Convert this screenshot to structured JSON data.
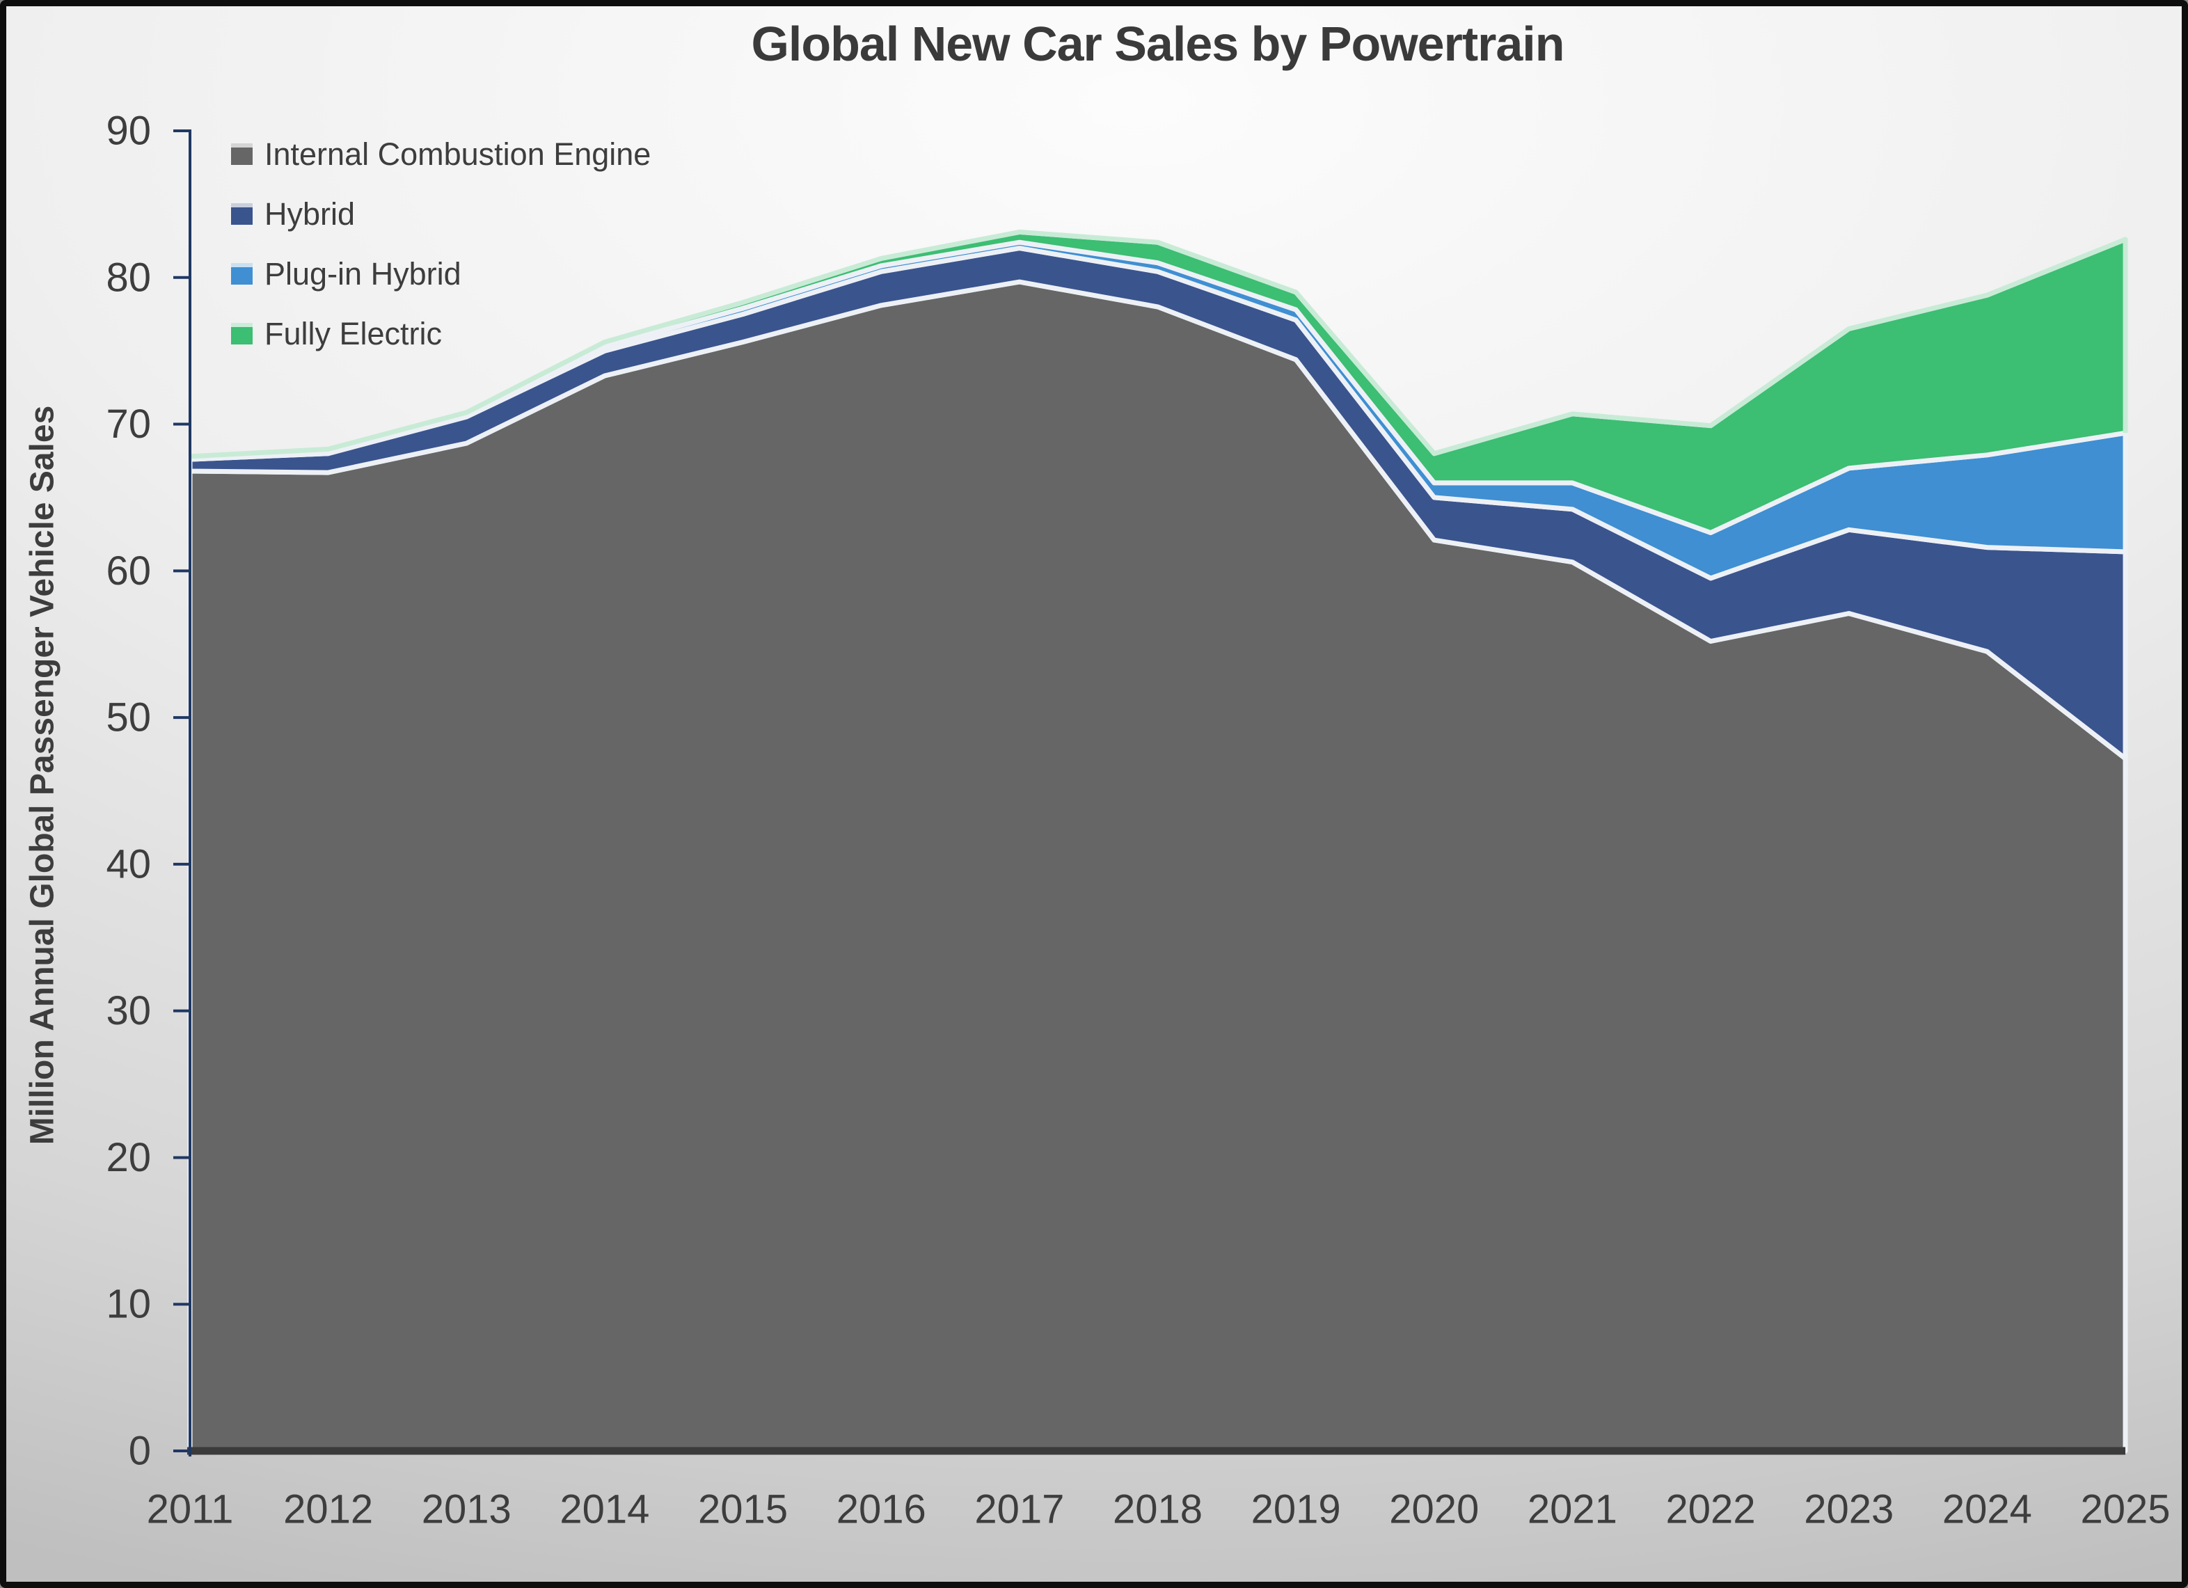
{
  "chart_data": {
    "type": "area",
    "stacked": true,
    "title": "Global New Car Sales by Powertrain",
    "ylabel": "Million Annual Global Passenger Vehicle Sales",
    "xlabel": "",
    "ylim": [
      0,
      90
    ],
    "y_ticks": [
      0,
      10,
      20,
      30,
      40,
      50,
      60,
      70,
      80,
      90
    ],
    "categories": [
      "2011",
      "2012",
      "2013",
      "2014",
      "2015",
      "2016",
      "2017",
      "2018",
      "2019",
      "2020",
      "2021",
      "2022",
      "2023",
      "2024",
      "2025"
    ],
    "series": [
      {
        "name": "Internal Combustion Engine",
        "color": "#666666",
        "values": [
          66.8,
          66.7,
          68.7,
          73.3,
          75.6,
          78.1,
          79.7,
          78.0,
          74.4,
          62.1,
          60.6,
          55.2,
          57.1,
          54.5,
          47.2
        ]
      },
      {
        "name": "Hybrid",
        "color": "#3A548E",
        "values": [
          0.8,
          1.3,
          1.8,
          1.7,
          1.9,
          2.3,
          2.3,
          2.4,
          2.7,
          2.9,
          3.6,
          4.3,
          5.7,
          7.1,
          14.1
        ]
      },
      {
        "name": "Plug-in Hybrid",
        "color": "#3F8FD2",
        "values": [
          0.1,
          0.1,
          0.2,
          0.3,
          0.4,
          0.4,
          0.4,
          0.6,
          0.7,
          1.0,
          1.8,
          3.1,
          4.2,
          6.3,
          8.1
        ]
      },
      {
        "name": "Fully Electric",
        "color": "#3CBE73",
        "values": [
          0.1,
          0.2,
          0.1,
          0.3,
          0.4,
          0.5,
          0.7,
          1.4,
          1.2,
          2.0,
          4.7,
          7.3,
          9.5,
          10.9,
          13.2
        ]
      }
    ],
    "grid": false,
    "legend_position": "top-left-inside",
    "colors": {
      "band_stroke": "#EDF1F6",
      "top_band_stroke": "#C8EBD6",
      "y_axis": "#1F3864",
      "x_axis": "#3B3B3B",
      "text": "#3D3D3D",
      "title_text": "#3A3A3A"
    }
  }
}
